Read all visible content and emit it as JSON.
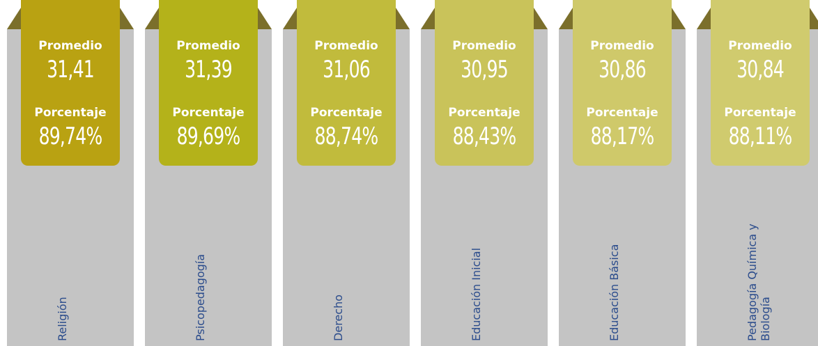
{
  "cards": [
    {
      "promedio_label": "Promedio",
      "promedio": "31,41",
      "porcentaje_label": "Porcentaje",
      "porcentaje": "89,74%",
      "name": "Religión",
      "color": "#b9a212"
    },
    {
      "promedio_label": "Promedio",
      "promedio": "31,39",
      "porcentaje_label": "Porcentaje",
      "porcentaje": "89,69%",
      "name": "Psicopedagogía",
      "color": "#b4b21a"
    },
    {
      "promedio_label": "Promedio",
      "promedio": "31,06",
      "porcentaje_label": "Porcentaje",
      "porcentaje": "88,74%",
      "name": "Derecho",
      "color": "#c1bb3c"
    },
    {
      "promedio_label": "Promedio",
      "promedio": "30,95",
      "porcentaje_label": "Porcentaje",
      "porcentaje": "88,43%",
      "name": "Educación Inicial",
      "color": "#c9c35a"
    },
    {
      "promedio_label": "Promedio",
      "promedio": "30,86",
      "porcentaje_label": "Porcentaje",
      "porcentaje": "88,17%",
      "name": "Educación Básica",
      "color": "#cfc96a"
    },
    {
      "promedio_label": "Promedio",
      "promedio": "30,84",
      "porcentaje_label": "Porcentaje",
      "porcentaje": "88,11%",
      "name": "Pedagogía Química y Biología",
      "color": "#d0cb6e"
    }
  ]
}
